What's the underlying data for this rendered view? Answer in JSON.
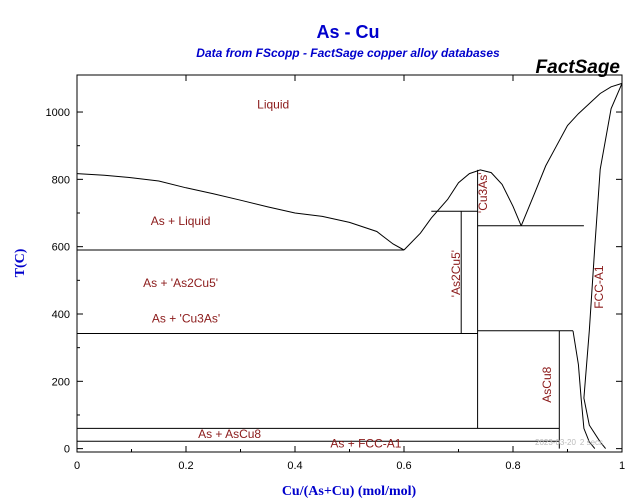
{
  "chart_data": {
    "type": "line",
    "title": "As - Cu",
    "subtitle": "Data from FScopp - FactSage copper alloy databases",
    "brand": "FactSage",
    "timestamp": "2023-03-20",
    "timestamp_extra": "2 secs",
    "xlabel": "Cu/(As+Cu) (mol/mol)",
    "ylabel": "T(C)",
    "xlim": [
      0,
      1
    ],
    "ylim": [
      -10,
      1110
    ],
    "x_ticks": [
      0,
      0.2,
      0.4,
      0.6,
      0.8,
      1
    ],
    "x_tick_labels": [
      "0",
      "0.2",
      "0.4",
      "0.6",
      "0.8",
      "1"
    ],
    "y_ticks": [
      0,
      200,
      400,
      600,
      800,
      1000
    ],
    "y_tick_labels": [
      "0",
      "200",
      "400",
      "600",
      "800",
      "1000"
    ],
    "grid": false,
    "series": [
      {
        "points": [
          [
            0,
            817
          ],
          [
            0.05,
            812
          ],
          [
            0.1,
            805
          ],
          [
            0.15,
            795
          ],
          [
            0.2,
            775
          ],
          [
            0.25,
            757
          ],
          [
            0.3,
            738
          ],
          [
            0.35,
            718
          ],
          [
            0.4,
            700
          ],
          [
            0.45,
            690
          ],
          [
            0.5,
            672
          ],
          [
            0.55,
            645
          ],
          [
            0.58,
            608
          ],
          [
            0.6,
            590
          ]
        ]
      },
      {
        "points": [
          [
            0.6,
            590
          ],
          [
            0.63,
            640
          ],
          [
            0.65,
            685
          ],
          [
            0.68,
            740
          ],
          [
            0.7,
            790
          ],
          [
            0.72,
            817
          ],
          [
            0.74,
            828
          ],
          [
            0.76,
            820
          ],
          [
            0.78,
            785
          ],
          [
            0.8,
            720
          ],
          [
            0.815,
            662
          ]
        ]
      },
      {
        "points": [
          [
            0.815,
            662
          ],
          [
            0.84,
            760
          ],
          [
            0.86,
            840
          ],
          [
            0.88,
            900
          ],
          [
            0.9,
            960
          ],
          [
            0.92,
            995
          ],
          [
            0.94,
            1025
          ],
          [
            0.96,
            1055
          ],
          [
            0.98,
            1075
          ],
          [
            1,
            1085
          ]
        ]
      },
      {
        "points": [
          [
            1,
            1085
          ],
          [
            0.98,
            1010
          ],
          [
            0.96,
            830
          ],
          [
            0.95,
            600
          ],
          [
            0.94,
            350
          ],
          [
            0.93,
            150
          ],
          [
            0.94,
            70
          ],
          [
            0.96,
            20
          ],
          [
            0.97,
            0
          ]
        ]
      },
      {
        "points": [
          [
            0.91,
            350
          ],
          [
            0.92,
            250
          ],
          [
            0.925,
            150
          ],
          [
            0.93,
            60
          ],
          [
            0.94,
            20
          ],
          [
            0.95,
            0
          ]
        ]
      },
      {
        "points": [
          [
            0,
            590
          ],
          [
            0.6,
            590
          ]
        ]
      },
      {
        "points": [
          [
            0,
            342
          ],
          [
            0.735,
            342
          ]
        ]
      },
      {
        "points": [
          [
            0,
            60
          ],
          [
            0.885,
            60
          ]
        ]
      },
      {
        "points": [
          [
            0,
            22
          ],
          [
            0.885,
            22
          ]
        ]
      },
      {
        "points": [
          [
            0.65,
            705
          ],
          [
            0.735,
            705
          ]
        ]
      },
      {
        "points": [
          [
            0.735,
            662
          ],
          [
            0.93,
            662
          ]
        ]
      },
      {
        "points": [
          [
            0.735,
            350
          ],
          [
            0.91,
            350
          ]
        ]
      },
      {
        "points": [
          [
            0.705,
            705
          ],
          [
            0.705,
            342
          ]
        ]
      },
      {
        "points": [
          [
            0.735,
            828
          ],
          [
            0.735,
            60
          ]
        ]
      },
      {
        "points": [
          [
            0.885,
            350
          ],
          [
            0.885,
            0
          ]
        ]
      }
    ],
    "region_labels": [
      {
        "text": "Liquid",
        "x": 0.36,
        "y": 1010,
        "rotate": false
      },
      {
        "text": "As + Liquid",
        "x": 0.19,
        "y": 665,
        "rotate": false
      },
      {
        "text": "As + 'As2Cu5'",
        "x": 0.19,
        "y": 480,
        "rotate": false,
        "base": "As + 'As",
        "sub1": "2",
        "mid": "Cu",
        "sub2": "5",
        "end": "'"
      },
      {
        "text": "As + 'Cu3As'",
        "x": 0.2,
        "y": 375,
        "rotate": false,
        "base": "As + 'Cu",
        "sub1": "3",
        "mid": "As'",
        "sub2": "",
        "end": ""
      },
      {
        "text": "As + AsCu8",
        "x": 0.28,
        "y": 32,
        "rotate": false,
        "base": "As + AsCu",
        "sub1": "8",
        "mid": "",
        "sub2": "",
        "end": ""
      },
      {
        "text": "As + FCC-A1",
        "x": 0.53,
        "y": 3,
        "rotate": false
      },
      {
        "text": "'As2Cu5'",
        "x": 0.703,
        "y": 520,
        "rotate": true
      },
      {
        "text": "'Cu3As'",
        "x": 0.752,
        "y": 760,
        "rotate": true
      },
      {
        "text": "AsCu8",
        "x": 0.87,
        "y": 190,
        "rotate": true
      },
      {
        "text": "FCC-A1",
        "x": 0.965,
        "y": 480,
        "rotate": true
      }
    ]
  }
}
